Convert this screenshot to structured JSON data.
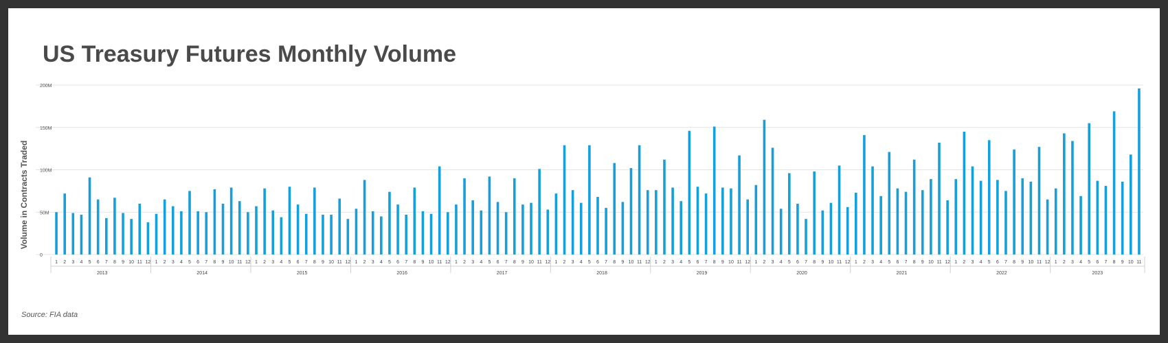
{
  "chart_data": {
    "type": "bar",
    "title": "US Treasury Futures Monthly Volume",
    "ylabel": "Volume in Contracts Traded",
    "xlabel": "",
    "source": "Source: FIA data",
    "ylim": [
      0,
      200
    ],
    "yticks": [
      "0",
      "50M",
      "100M",
      "150M",
      "200M"
    ],
    "ytick_values": [
      0,
      50,
      100,
      150,
      200
    ],
    "grid": true,
    "legend": "none",
    "bar_color": "#15a0dc",
    "years": [
      "2013",
      "2014",
      "2015",
      "2016",
      "2017",
      "2018",
      "2019",
      "2020",
      "2021",
      "2022",
      "2023"
    ],
    "months_per_year": [
      12,
      12,
      12,
      12,
      12,
      12,
      12,
      12,
      12,
      12,
      11
    ],
    "values": [
      50,
      72,
      49,
      47,
      91,
      65,
      43,
      67,
      49,
      42,
      60,
      38,
      48,
      65,
      57,
      51,
      75,
      51,
      50,
      77,
      60,
      79,
      63,
      50,
      57,
      78,
      52,
      44,
      80,
      59,
      48,
      79,
      47,
      47,
      66,
      42,
      54,
      88,
      51,
      45,
      74,
      59,
      47,
      79,
      51,
      48,
      104,
      50,
      59,
      90,
      64,
      52,
      92,
      62,
      50,
      90,
      59,
      61,
      101,
      53,
      72,
      129,
      76,
      61,
      129,
      68,
      55,
      108,
      62,
      102,
      129,
      76,
      76,
      112,
      79,
      63,
      146,
      80,
      72,
      151,
      79,
      78,
      117,
      65,
      82,
      159,
      126,
      54,
      96,
      60,
      42,
      98,
      52,
      61,
      105,
      56,
      73,
      141,
      104,
      69,
      121,
      78,
      74,
      112,
      76,
      89,
      132,
      64,
      89,
      145,
      104,
      87,
      135,
      88,
      75,
      124,
      90,
      86,
      127,
      65,
      78,
      143,
      134,
      69,
      155,
      87,
      81,
      169,
      86,
      118,
      196
    ]
  }
}
